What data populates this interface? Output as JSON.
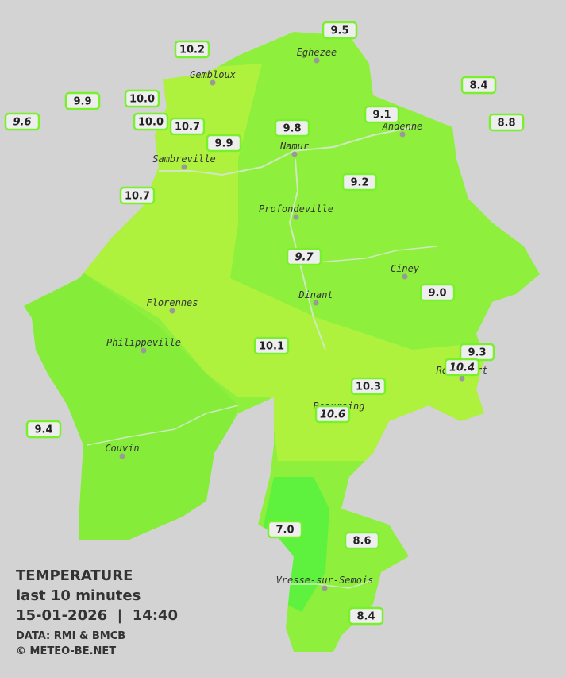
{
  "towns": [
    "Eghezee",
    "Gembloux",
    "Andenne",
    "Namur",
    "Sambreville",
    "Profondeville",
    "Ciney",
    "Dinant",
    "Florennes",
    "Philippeville",
    "Rochefort",
    "Beauraing",
    "Couvin",
    "Vresse-sur-Semois"
  ],
  "stations": [
    "9.5",
    "10.2",
    "8.4",
    "9.9",
    "10.0",
    "9.6",
    "10.0",
    "10.7",
    "9.1",
    "8.8",
    "9.8",
    "9.9",
    "9.2",
    "10.7",
    "9.7",
    "9.0",
    "10.1",
    "9.3",
    "10.4",
    "10.3",
    "10.6",
    "9.4",
    "7.0",
    "8.6",
    "8.4"
  ],
  "legend": {
    "title": "TEMPERATURE",
    "subtitle": "last 10 minutes",
    "datetime": "15-01-2026  |  14:40",
    "source": "DATA: RMI & BMCB",
    "credit": "© METEO-BE.NET"
  }
}
